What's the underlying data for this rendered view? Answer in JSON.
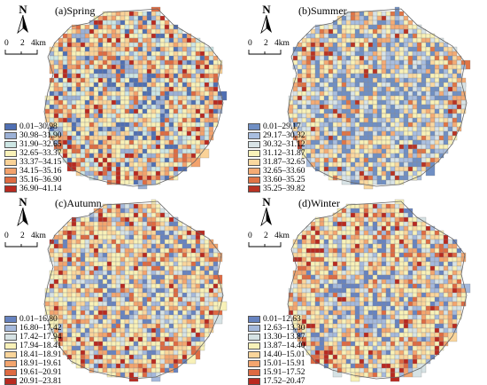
{
  "panels": [
    {
      "title": "(a)Spring",
      "north": "N",
      "scale_labels": [
        "0",
        "2",
        "4km"
      ],
      "palette": [
        "#4f6fb3",
        "#9cb1d6",
        "#cde6e4",
        "#f8f1b8",
        "#fad297",
        "#f3a26c",
        "#de6b42",
        "#b92a20"
      ],
      "legend": [
        "0.01–30.98",
        "30.98–31.90",
        "31.90–32.65",
        "32.65–33.37",
        "33.37–34.15",
        "34.15–35.16",
        "35.16–36.90",
        "36.90–41.14"
      ]
    },
    {
      "title": "(b)Summer",
      "north": "N",
      "scale_labels": [
        "0",
        "2",
        "4km"
      ],
      "palette": [
        "#6f8fc4",
        "#a9bedf",
        "#d8e3e6",
        "#f8f1b8",
        "#fad89f",
        "#f4ab74",
        "#e07445",
        "#b93323"
      ],
      "legend": [
        "0.01–29.17",
        "29.17–30.32",
        "30.32–31.12",
        "31.12–31.87",
        "31.87–32.65",
        "32.65–33.60",
        "33.60–35.25",
        "35.25–39.82"
      ]
    },
    {
      "title": "(c)Autumn",
      "north": "N",
      "scale_labels": [
        "0",
        "2",
        "4km"
      ],
      "palette": [
        "#6783c0",
        "#a5b9dc",
        "#d6e2e4",
        "#f8f1b8",
        "#fad59b",
        "#f3a56e",
        "#de6a42",
        "#b92a20"
      ],
      "legend": [
        "0.01–16.80",
        "16.80–17.42",
        "17.42–17.94",
        "17.94–18.41",
        "18.41–18.91",
        "18.91–19.61",
        "19.61–20.91",
        "20.91–23.81"
      ]
    },
    {
      "title": "(d)Winter",
      "north": "N",
      "scale_labels": [
        "0",
        "2",
        "4km"
      ],
      "palette": [
        "#6783c0",
        "#a5b9dc",
        "#d6e2e4",
        "#f8f1b8",
        "#fad59b",
        "#f3a56e",
        "#de6a42",
        "#b92a20"
      ],
      "legend": [
        "0.01–12.63",
        "12.63–13.30",
        "13.30–13.87",
        "13.87–14.40",
        "14.40–15.01",
        "15.01–15.91",
        "15.91–17.52",
        "17.52–20.47"
      ]
    }
  ]
}
